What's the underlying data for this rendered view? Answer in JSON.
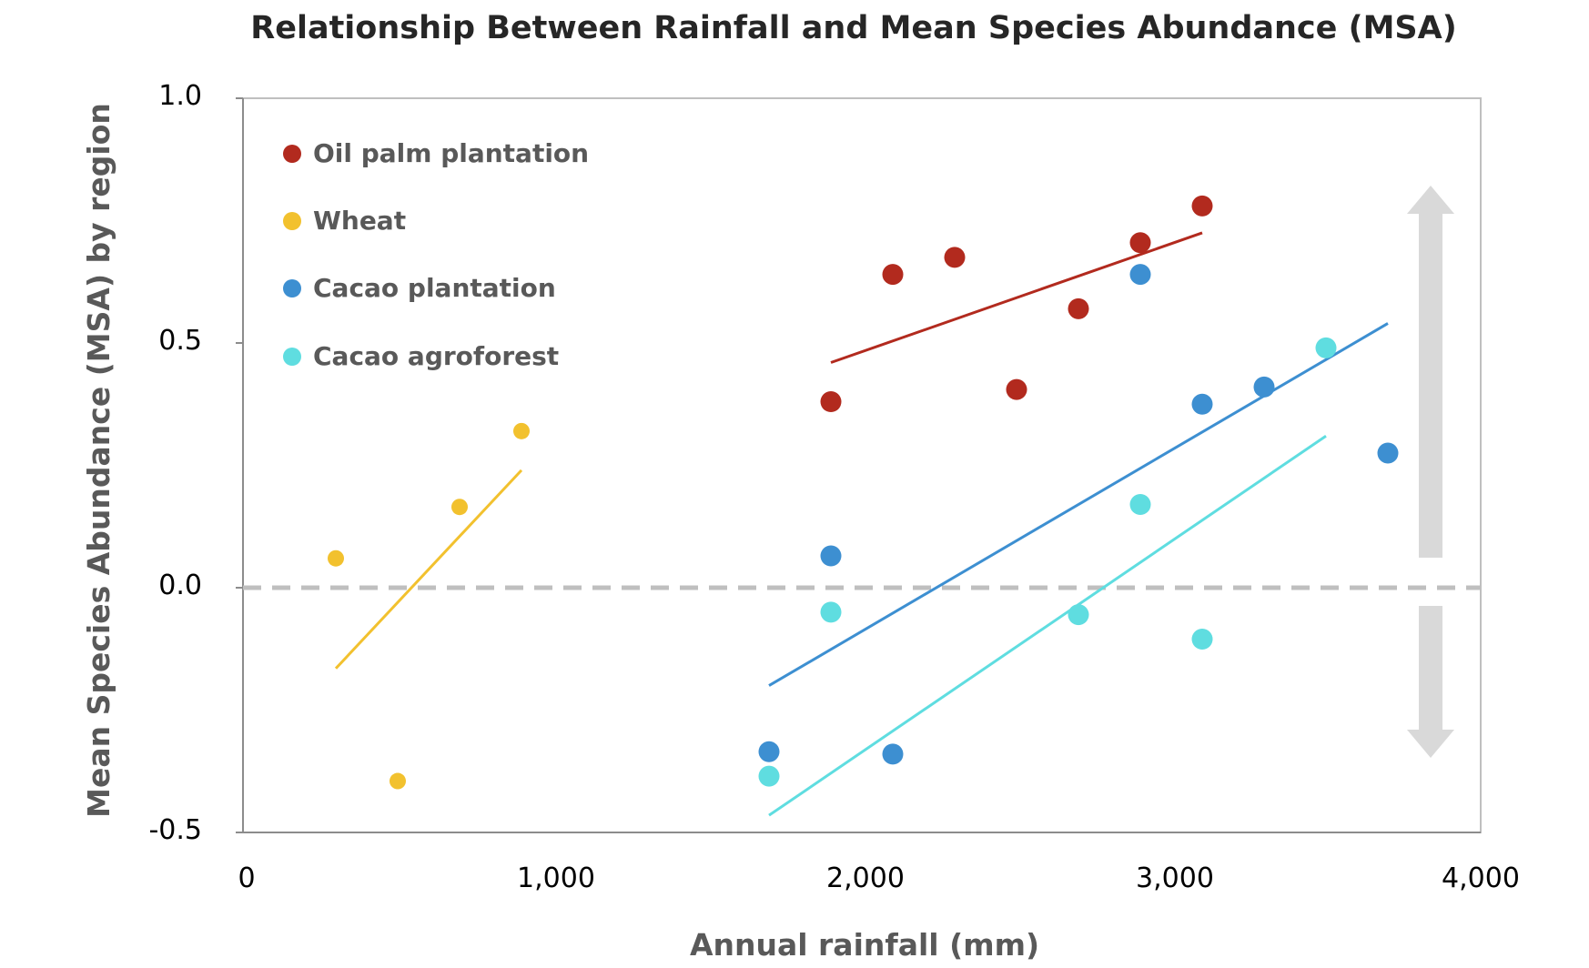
{
  "chart_data": {
    "type": "scatter",
    "title": "Relationship Between Rainfall and Mean Species Abundance (MSA)",
    "xlabel": "Annual rainfall (mm)",
    "ylabel": "Mean Species Abundance (MSA) by region",
    "xlim": [
      0,
      4000
    ],
    "ylim": [
      -0.5,
      1.0
    ],
    "x_ticks": [
      "0",
      "1,000",
      "2,000",
      "3,000",
      "4,000"
    ],
    "y_ticks": [
      "1.0",
      "0.5",
      "0.0",
      "-0.5"
    ],
    "legend_position": "top-left",
    "reference_line": {
      "y": 0.0,
      "style": "dashed",
      "color": "#bfbfbf"
    },
    "arrow": {
      "direction": "up-down",
      "color": "#d9d9d9"
    },
    "series": [
      {
        "name": "Oil palm plantation",
        "color": "#b22a1e",
        "marker": "large",
        "points": [
          [
            1900,
            0.38
          ],
          [
            2100,
            0.64
          ],
          [
            2300,
            0.675
          ],
          [
            2500,
            0.405
          ],
          [
            2700,
            0.57
          ],
          [
            2900,
            0.705
          ],
          [
            3100,
            0.78
          ]
        ],
        "trend": [
          [
            1900,
            0.46
          ],
          [
            3100,
            0.725
          ]
        ]
      },
      {
        "name": "Wheat",
        "color": "#f2c12e",
        "marker": "small",
        "points": [
          [
            300,
            0.06
          ],
          [
            500,
            -0.395
          ],
          [
            700,
            0.165
          ],
          [
            900,
            0.32
          ]
        ],
        "trend": [
          [
            300,
            -0.165
          ],
          [
            900,
            0.24
          ]
        ]
      },
      {
        "name": "Cacao plantation",
        "color": "#3d8fd1",
        "marker": "large",
        "points": [
          [
            1700,
            -0.335
          ],
          [
            1900,
            0.065
          ],
          [
            2100,
            -0.34
          ],
          [
            2900,
            0.64
          ],
          [
            3100,
            0.375
          ],
          [
            3300,
            0.41
          ],
          [
            3700,
            0.275
          ]
        ],
        "trend": [
          [
            1700,
            -0.2
          ],
          [
            3700,
            0.54
          ]
        ]
      },
      {
        "name": "Cacao agroforest",
        "color": "#5fdde0",
        "marker": "large",
        "points": [
          [
            1700,
            -0.385
          ],
          [
            1900,
            -0.05
          ],
          [
            2700,
            -0.055
          ],
          [
            2900,
            0.17
          ],
          [
            3100,
            -0.105
          ],
          [
            3500,
            0.49
          ]
        ],
        "trend": [
          [
            1700,
            -0.465
          ],
          [
            3500,
            0.31
          ]
        ]
      }
    ]
  }
}
